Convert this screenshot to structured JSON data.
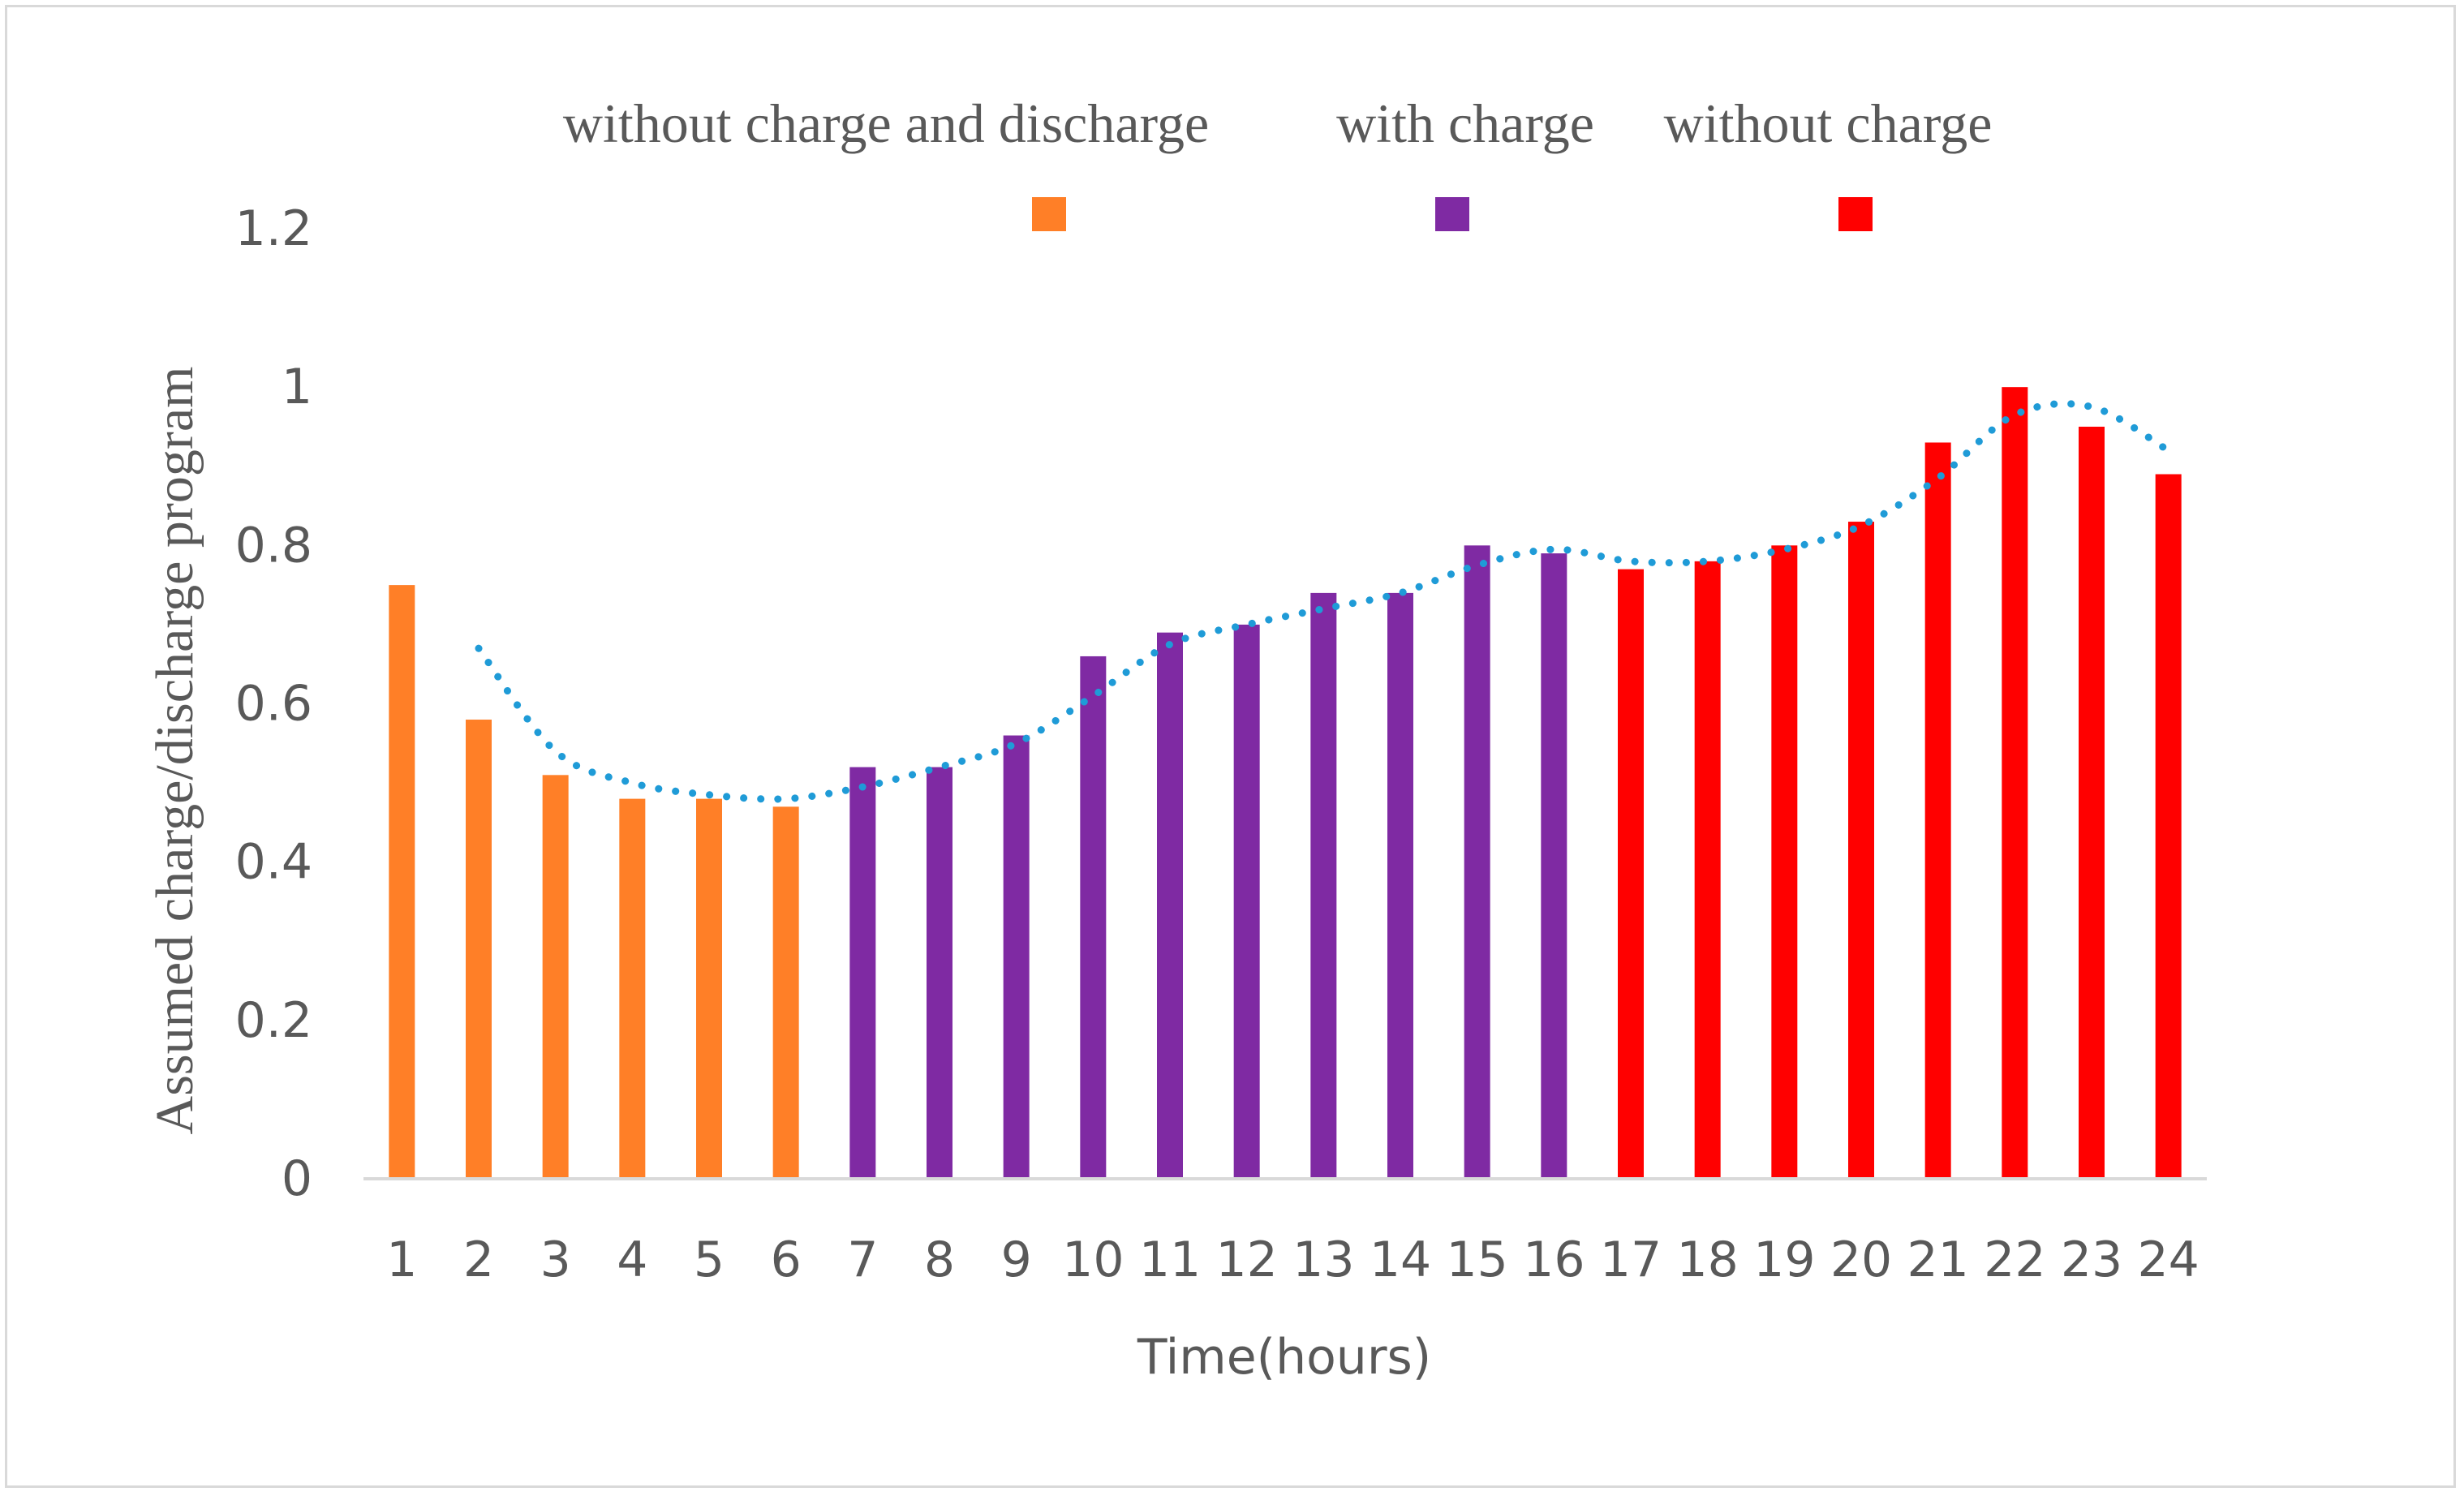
{
  "chart_data": {
    "type": "bar",
    "xlabel": "Time(hours)",
    "ylabel": "Assumed charge/discharge program",
    "ylim": [
      0,
      1.2
    ],
    "yticks": [
      "0",
      "0.2",
      "0.4",
      "0.6",
      "0.8",
      "1",
      "1.2"
    ],
    "grid": false,
    "legend_position": "top",
    "categories": [
      "1",
      "2",
      "3",
      "4",
      "5",
      "6",
      "7",
      "8",
      "9",
      "10",
      "11",
      "12",
      "13",
      "14",
      "15",
      "16",
      "17",
      "18",
      "19",
      "20",
      "21",
      "22",
      "23",
      "24"
    ],
    "values": [
      0.75,
      0.58,
      0.51,
      0.48,
      0.48,
      0.47,
      0.52,
      0.52,
      0.56,
      0.66,
      0.69,
      0.7,
      0.74,
      0.74,
      0.8,
      0.79,
      0.77,
      0.78,
      0.8,
      0.83,
      0.93,
      1.0,
      0.95,
      0.89
    ],
    "series": [
      {
        "name": "without charge and discharge",
        "color": "#ff7f27",
        "hours": [
          1,
          6
        ]
      },
      {
        "name": "with charge",
        "color": "#7f2aa3",
        "hours": [
          7,
          16
        ]
      },
      {
        "name": "without charge",
        "color": "#ff0000",
        "hours": [
          17,
          24
        ]
      }
    ],
    "trendline": {
      "style": "dotted",
      "color": "#1f9bd7",
      "x": [
        2,
        3,
        4,
        5,
        6,
        7,
        8,
        9,
        10,
        11,
        12,
        13,
        14,
        15,
        16,
        17,
        18,
        19,
        20,
        21,
        22,
        23,
        24
      ],
      "y": [
        0.67,
        0.54,
        0.5,
        0.485,
        0.48,
        0.495,
        0.52,
        0.55,
        0.61,
        0.675,
        0.7,
        0.72,
        0.74,
        0.775,
        0.795,
        0.78,
        0.78,
        0.795,
        0.825,
        0.885,
        0.965,
        0.975,
        0.92
      ]
    }
  }
}
